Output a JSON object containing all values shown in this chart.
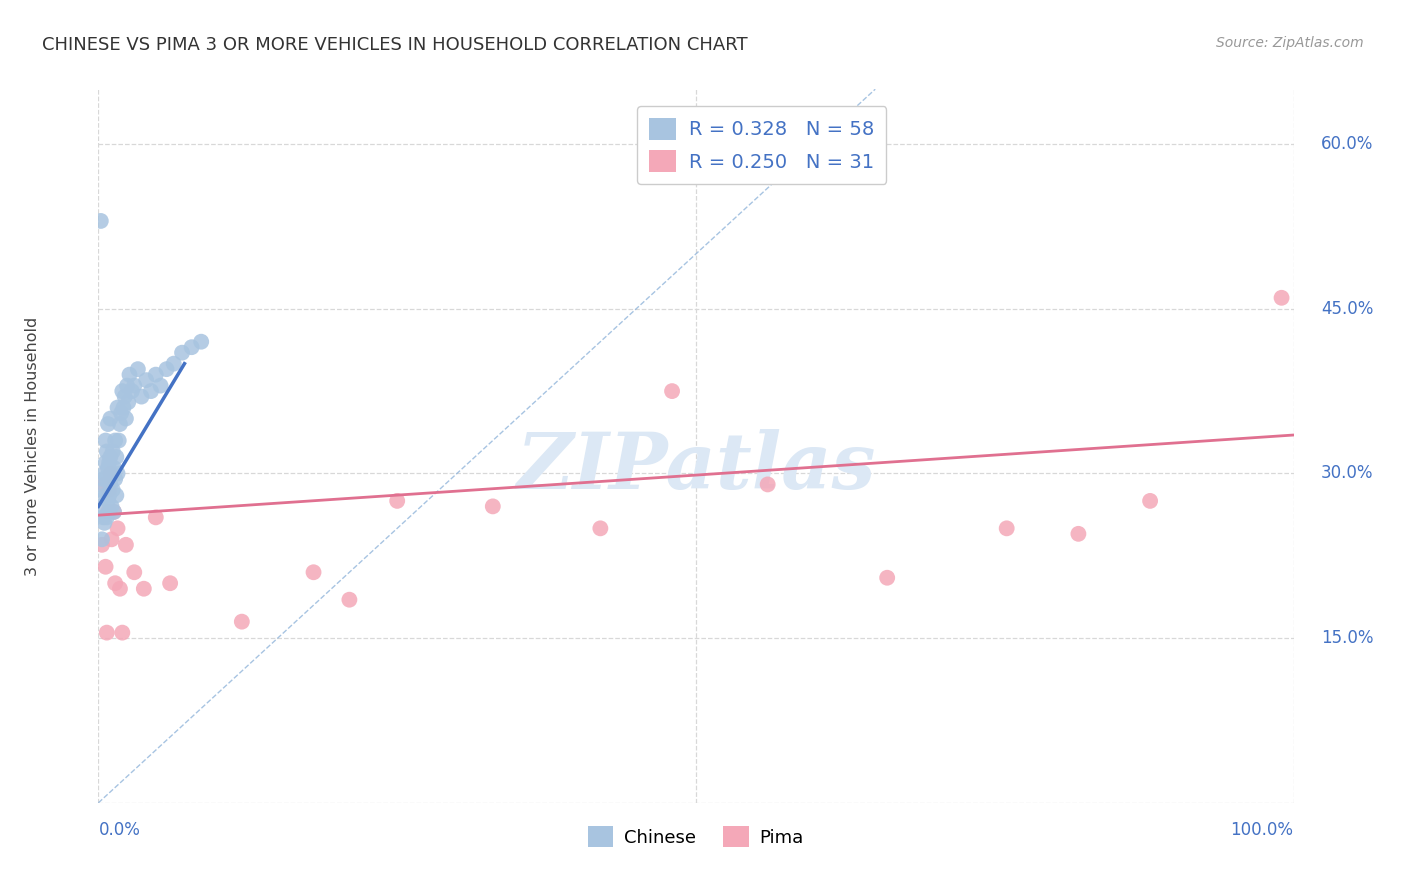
{
  "title": "CHINESE VS PIMA 3 OR MORE VEHICLES IN HOUSEHOLD CORRELATION CHART",
  "source": "Source: ZipAtlas.com",
  "ylabel": "3 or more Vehicles in Household",
  "watermark": "ZIPatlas",
  "xlim": [
    0.0,
    1.0
  ],
  "ylim": [
    0.0,
    0.65
  ],
  "yticks": [
    0.0,
    0.15,
    0.3,
    0.45,
    0.6
  ],
  "ytick_labels": [
    "",
    "15.0%",
    "30.0%",
    "45.0%",
    "60.0%"
  ],
  "chinese_color": "#a8c4e0",
  "pima_color": "#f4a8b8",
  "chinese_line_color": "#4472c4",
  "pima_line_color": "#e07090",
  "diagonal_color": "#8ab0d8",
  "legend_R_chinese": "0.328",
  "legend_N_chinese": "58",
  "legend_R_pima": "0.250",
  "legend_N_pima": "31",
  "chinese_x": [
    0.002,
    0.003,
    0.003,
    0.004,
    0.004,
    0.005,
    0.005,
    0.006,
    0.006,
    0.006,
    0.007,
    0.007,
    0.007,
    0.008,
    0.008,
    0.008,
    0.009,
    0.009,
    0.009,
    0.01,
    0.01,
    0.01,
    0.011,
    0.011,
    0.012,
    0.012,
    0.013,
    0.013,
    0.014,
    0.014,
    0.015,
    0.015,
    0.016,
    0.016,
    0.017,
    0.018,
    0.019,
    0.02,
    0.021,
    0.022,
    0.023,
    0.024,
    0.025,
    0.026,
    0.028,
    0.03,
    0.033,
    0.036,
    0.04,
    0.044,
    0.048,
    0.052,
    0.057,
    0.063,
    0.07,
    0.078,
    0.086,
    0.002
  ],
  "chinese_y": [
    0.27,
    0.285,
    0.24,
    0.295,
    0.26,
    0.3,
    0.255,
    0.31,
    0.28,
    0.33,
    0.295,
    0.26,
    0.32,
    0.275,
    0.305,
    0.345,
    0.28,
    0.31,
    0.265,
    0.29,
    0.315,
    0.35,
    0.3,
    0.27,
    0.32,
    0.285,
    0.305,
    0.265,
    0.33,
    0.295,
    0.315,
    0.28,
    0.3,
    0.36,
    0.33,
    0.345,
    0.355,
    0.375,
    0.36,
    0.37,
    0.35,
    0.38,
    0.365,
    0.39,
    0.375,
    0.38,
    0.395,
    0.37,
    0.385,
    0.375,
    0.39,
    0.38,
    0.395,
    0.4,
    0.41,
    0.415,
    0.42,
    0.53
  ],
  "pima_x": [
    0.003,
    0.005,
    0.006,
    0.007,
    0.008,
    0.009,
    0.01,
    0.011,
    0.013,
    0.014,
    0.016,
    0.018,
    0.02,
    0.023,
    0.03,
    0.038,
    0.048,
    0.06,
    0.12,
    0.18,
    0.21,
    0.25,
    0.33,
    0.42,
    0.48,
    0.56,
    0.66,
    0.76,
    0.82,
    0.88,
    0.99
  ],
  "pima_y": [
    0.235,
    0.29,
    0.215,
    0.155,
    0.265,
    0.285,
    0.3,
    0.24,
    0.265,
    0.2,
    0.25,
    0.195,
    0.155,
    0.235,
    0.21,
    0.195,
    0.26,
    0.2,
    0.165,
    0.21,
    0.185,
    0.275,
    0.27,
    0.25,
    0.375,
    0.29,
    0.205,
    0.25,
    0.245,
    0.275,
    0.46
  ],
  "background_color": "#ffffff",
  "grid_color": "#d8d8d8"
}
